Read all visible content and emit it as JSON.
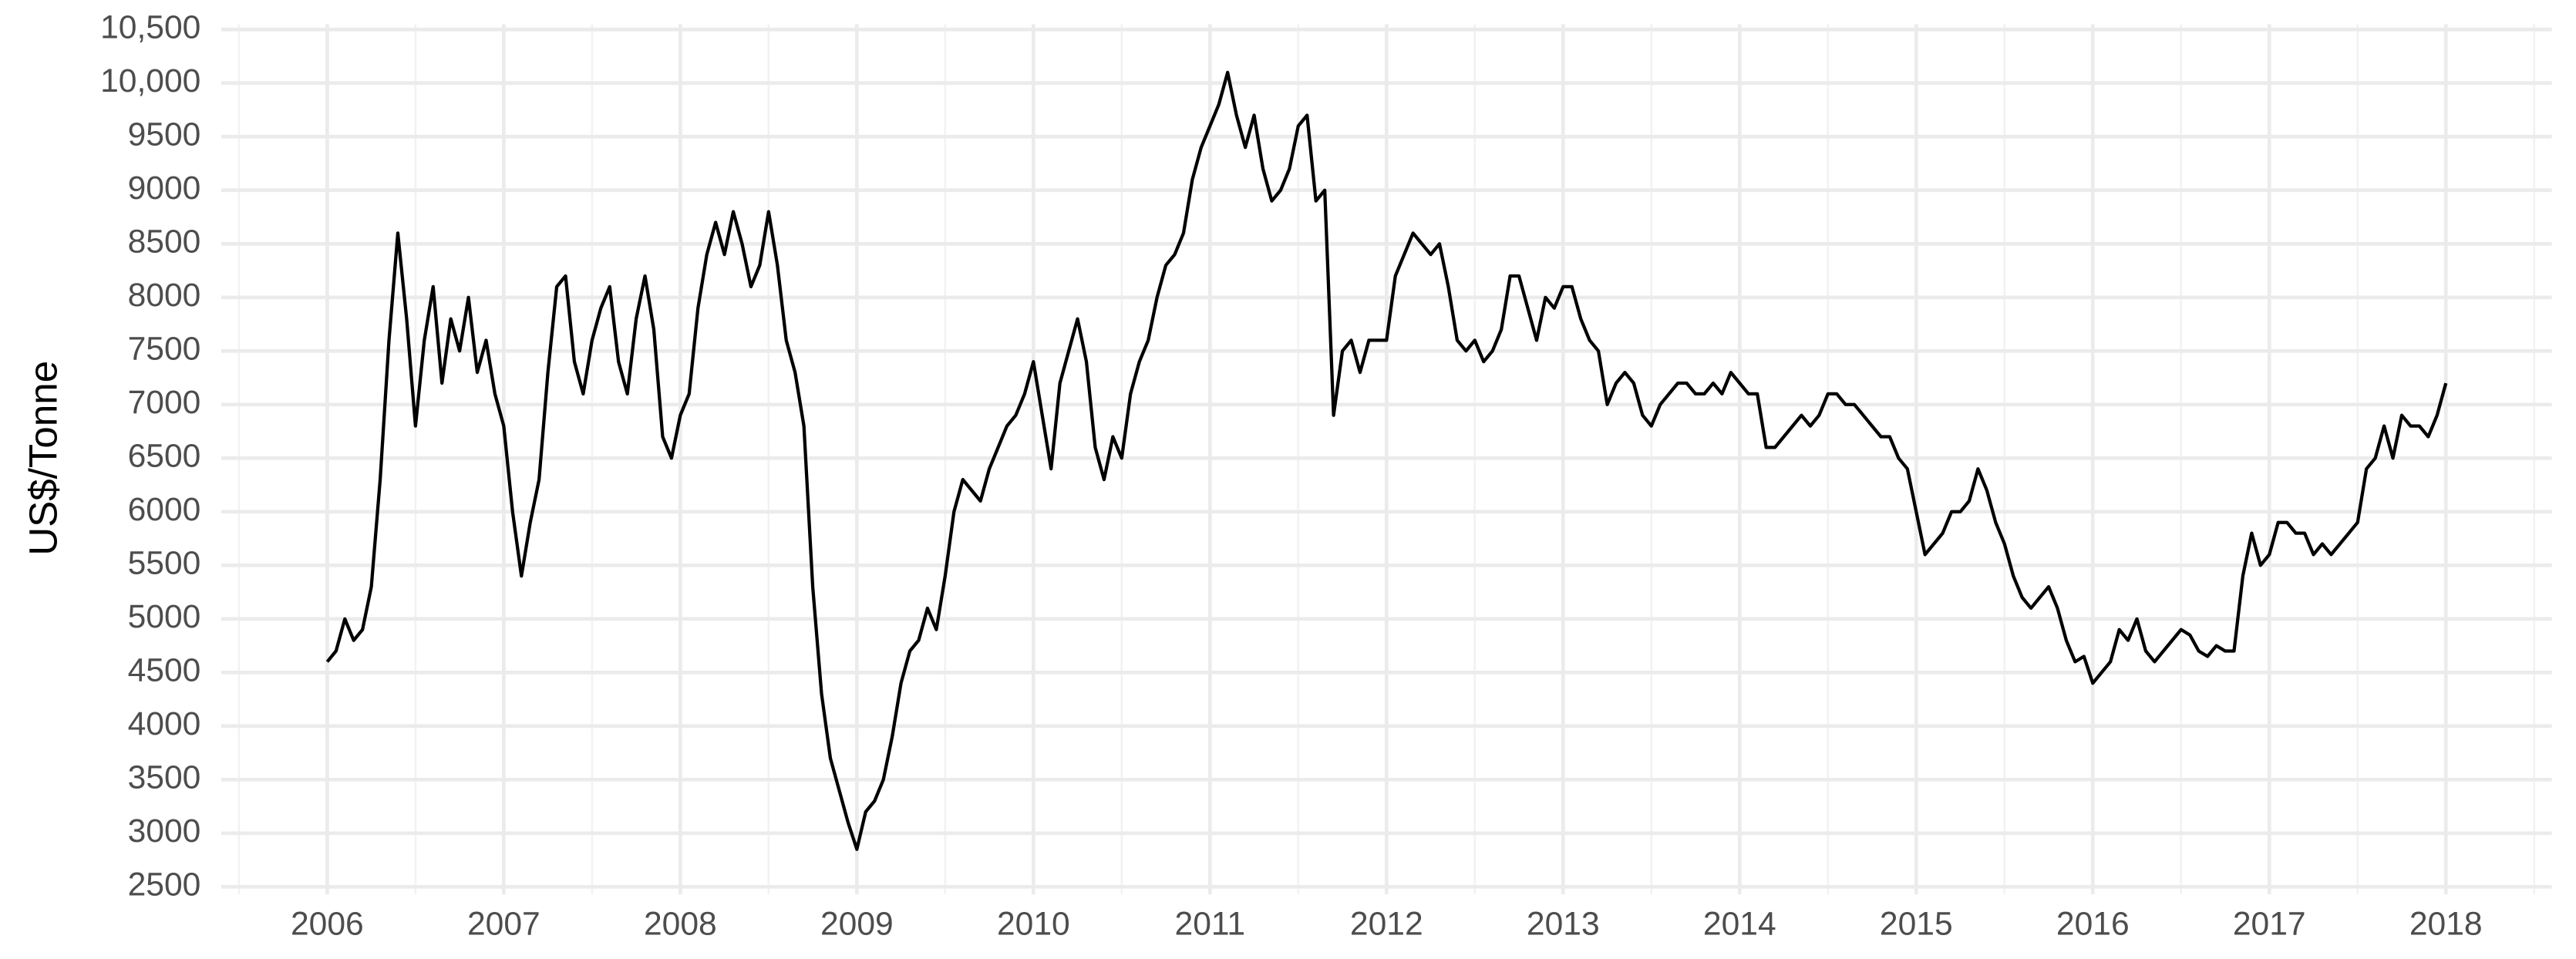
{
  "chart_data": {
    "type": "line",
    "y_label": "US$/Tonne",
    "color": "#000000",
    "grid": true,
    "xlim": [
      2005.4,
      2018.6
    ],
    "ylim": [
      2430,
      10550
    ],
    "xticks": [
      2006,
      2007,
      2008,
      2009,
      2010,
      2011,
      2012,
      2013,
      2014,
      2015,
      2016,
      2017,
      2018
    ],
    "yticks": [
      2500,
      3000,
      3500,
      4000,
      4500,
      5000,
      5500,
      6000,
      6500,
      7000,
      7500,
      8000,
      8500,
      9000,
      9500,
      {
        "value": 10000,
        "label": "10,000"
      },
      {
        "value": 10500,
        "label": "10,500"
      }
    ],
    "x": [
      2006,
      2006.05,
      2006.1,
      2006.15,
      2006.2,
      2006.25,
      2006.3,
      2006.35,
      2006.4,
      2006.45,
      2006.5,
      2006.55,
      2006.6,
      2006.65,
      2006.7,
      2006.75,
      2006.8,
      2006.85,
      2006.9,
      2006.95,
      2007,
      2007.05,
      2007.1,
      2007.15,
      2007.2,
      2007.25,
      2007.3,
      2007.35,
      2007.4,
      2007.45,
      2007.5,
      2007.55,
      2007.6,
      2007.65,
      2007.7,
      2007.75,
      2007.8,
      2007.85,
      2007.9,
      2007.95,
      2008,
      2008.05,
      2008.1,
      2008.15,
      2008.2,
      2008.25,
      2008.3,
      2008.35,
      2008.4,
      2008.45,
      2008.5,
      2008.55,
      2008.6,
      2008.65,
      2008.7,
      2008.75,
      2008.8,
      2008.85,
      2008.9,
      2008.95,
      2009,
      2009.05,
      2009.1,
      2009.15,
      2009.2,
      2009.25,
      2009.3,
      2009.35,
      2009.4,
      2009.45,
      2009.5,
      2009.55,
      2009.6,
      2009.65,
      2009.7,
      2009.75,
      2009.8,
      2009.85,
      2009.9,
      2009.95,
      2010,
      2010.05,
      2010.1,
      2010.15,
      2010.2,
      2010.25,
      2010.3,
      2010.35,
      2010.4,
      2010.45,
      2010.5,
      2010.55,
      2010.6,
      2010.65,
      2010.7,
      2010.75,
      2010.8,
      2010.85,
      2010.9,
      2010.95,
      2011,
      2011.05,
      2011.1,
      2011.15,
      2011.2,
      2011.25,
      2011.3,
      2011.35,
      2011.4,
      2011.45,
      2011.5,
      2011.55,
      2011.6,
      2011.65,
      2011.7,
      2011.75,
      2011.8,
      2011.85,
      2011.9,
      2011.95,
      2012,
      2012.05,
      2012.1,
      2012.15,
      2012.2,
      2012.25,
      2012.3,
      2012.35,
      2012.4,
      2012.45,
      2012.5,
      2012.55,
      2012.6,
      2012.65,
      2012.7,
      2012.75,
      2012.8,
      2012.85,
      2012.9,
      2012.95,
      2013,
      2013.05,
      2013.1,
      2013.15,
      2013.2,
      2013.25,
      2013.3,
      2013.35,
      2013.4,
      2013.45,
      2013.5,
      2013.55,
      2013.6,
      2013.65,
      2013.7,
      2013.75,
      2013.8,
      2013.85,
      2013.9,
      2013.95,
      2014,
      2014.05,
      2014.1,
      2014.15,
      2014.2,
      2014.25,
      2014.3,
      2014.35,
      2014.4,
      2014.45,
      2014.5,
      2014.55,
      2014.6,
      2014.65,
      2014.7,
      2014.75,
      2014.8,
      2014.85,
      2014.9,
      2014.95,
      2015,
      2015.05,
      2015.1,
      2015.15,
      2015.2,
      2015.25,
      2015.3,
      2015.35,
      2015.4,
      2015.45,
      2015.5,
      2015.55,
      2015.6,
      2015.65,
      2015.7,
      2015.75,
      2015.8,
      2015.85,
      2015.9,
      2015.95,
      2016,
      2016.05,
      2016.1,
      2016.15,
      2016.2,
      2016.25,
      2016.3,
      2016.35,
      2016.4,
      2016.45,
      2016.5,
      2016.55,
      2016.6,
      2016.65,
      2016.7,
      2016.75,
      2016.8,
      2016.85,
      2016.9,
      2016.95,
      2017,
      2017.05,
      2017.1,
      2017.15,
      2017.2,
      2017.25,
      2017.3,
      2017.35,
      2017.4,
      2017.45,
      2017.5,
      2017.55,
      2017.6,
      2017.65,
      2017.7,
      2017.75,
      2017.8,
      2017.85,
      2017.9,
      2017.95,
      2018
    ],
    "values": [
      4600,
      4700,
      5000,
      4800,
      4900,
      5300,
      6300,
      7600,
      8600,
      7800,
      6800,
      7600,
      8100,
      7200,
      7800,
      7500,
      8000,
      7300,
      7600,
      7100,
      6800,
      6000,
      5400,
      5900,
      6300,
      7300,
      8100,
      8200,
      7400,
      7100,
      7600,
      7900,
      8100,
      7400,
      7100,
      7800,
      8200,
      7700,
      6700,
      6500,
      6900,
      7100,
      7900,
      8400,
      8700,
      8400,
      8800,
      8500,
      8100,
      8300,
      8800,
      8300,
      7600,
      7300,
      6800,
      5300,
      4300,
      3700,
      3400,
      3100,
      2850,
      3200,
      3300,
      3500,
      3900,
      4400,
      4700,
      4800,
      5100,
      4900,
      5400,
      6000,
      6300,
      6200,
      6100,
      6400,
      6600,
      6800,
      6900,
      7100,
      7400,
      6900,
      6400,
      7200,
      7500,
      7800,
      7400,
      6600,
      6300,
      6700,
      6500,
      7100,
      7400,
      7600,
      8000,
      8300,
      8400,
      8600,
      9100,
      9400,
      9600,
      9800,
      10100,
      9700,
      9400,
      9700,
      9200,
      8900,
      9000,
      9200,
      9600,
      9700,
      8900,
      9000,
      6900,
      7500,
      7600,
      7300,
      7600,
      7600,
      7600,
      8200,
      8400,
      8600,
      8500,
      8400,
      8500,
      8100,
      7600,
      7500,
      7600,
      7400,
      7500,
      7700,
      8200,
      8200,
      7900,
      7600,
      8000,
      7900,
      8100,
      8100,
      7800,
      7600,
      7500,
      7000,
      7200,
      7300,
      7200,
      6900,
      6800,
      7000,
      7100,
      7200,
      7200,
      7100,
      7100,
      7200,
      7100,
      7300,
      7200,
      7100,
      7100,
      6600,
      6600,
      6700,
      6800,
      6900,
      6800,
      6900,
      7100,
      7100,
      7000,
      7000,
      6900,
      6800,
      6700,
      6700,
      6500,
      6400,
      6000,
      5600,
      5700,
      5800,
      6000,
      6000,
      6100,
      6400,
      6200,
      5900,
      5700,
      5400,
      5200,
      5100,
      5200,
      5300,
      5100,
      4800,
      4600,
      4650,
      4400,
      4500,
      4600,
      4900,
      4800,
      5000,
      4700,
      4600,
      4700,
      4800,
      4900,
      4850,
      4700,
      4650,
      4750,
      4700,
      4700,
      5400,
      5800,
      5500,
      5600,
      5900,
      5900,
      5800,
      5800,
      5600,
      5700,
      5600,
      5700,
      5800,
      5900,
      6400,
      6500,
      6800,
      6500,
      6900,
      6800,
      6800,
      6700,
      6900,
      7200
    ]
  }
}
